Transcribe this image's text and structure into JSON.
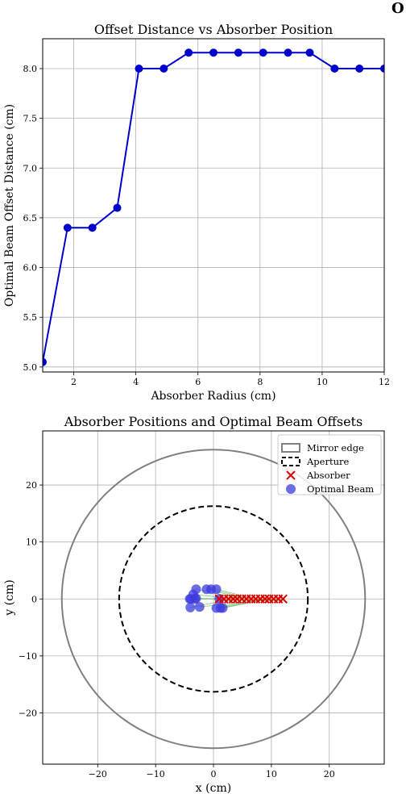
{
  "corner_glyph": "O",
  "chart_data": [
    {
      "type": "line",
      "title": "Offset Distance vs Absorber Position",
      "xlabel": "Absorber Radius (cm)",
      "ylabel": "Optimal Beam Offset Distance (cm)",
      "xlim": [
        1.0,
        12.0
      ],
      "ylim": [
        4.95,
        8.3
      ],
      "xticks": [
        2,
        4,
        6,
        8,
        10,
        12
      ],
      "yticks": [
        5.0,
        5.5,
        6.0,
        6.5,
        7.0,
        7.5,
        8.0
      ],
      "xtick_labels": [
        "2",
        "4",
        "6",
        "8",
        "10",
        "12"
      ],
      "ytick_labels": [
        "5.0",
        "5.5",
        "6.0",
        "6.5",
        "7.0",
        "7.5",
        "8.0"
      ],
      "grid": true,
      "color": "#0000cc",
      "series": [
        {
          "x": [
            1.0,
            1.8,
            2.6,
            3.4,
            4.1,
            4.9,
            5.7,
            6.5,
            7.3,
            8.1,
            8.9,
            9.6,
            10.4,
            11.2,
            12.0
          ],
          "y": [
            5.05,
            6.4,
            6.4,
            6.6,
            8.0,
            8.0,
            8.16,
            8.16,
            8.16,
            8.16,
            8.16,
            8.16,
            8.0,
            8.0,
            8.0
          ]
        }
      ]
    },
    {
      "type": "scatter",
      "title": "Absorber Positions and Optimal Beam Offsets",
      "xlabel": "x (cm)",
      "ylabel": "y (cm)",
      "xlim": [
        -29.5,
        29.5
      ],
      "ylim": [
        -29,
        29.5
      ],
      "xticks": [
        -20,
        -10,
        0,
        10,
        20
      ],
      "yticks": [
        -20,
        -10,
        0,
        10,
        20
      ],
      "xtick_labels": [
        "−20",
        "−10",
        "0",
        "10",
        "20"
      ],
      "ytick_labels": [
        "−20",
        "−10",
        "0",
        "10",
        "20"
      ],
      "grid": true,
      "legend_position": "top-right",
      "legend": [
        "Mirror edge",
        "Aperture",
        "Absorber",
        "Optimal Beam"
      ],
      "mirror_edge_radius": 26.2,
      "aperture_radius": 16.3,
      "colors": {
        "mirror": "#808080",
        "aperture": "#000000",
        "absorber": "#dd0000",
        "beam": "#3b3bdd",
        "link": "#66bb66"
      },
      "absorbers": {
        "x": [
          1.0,
          1.8,
          2.6,
          3.4,
          4.1,
          4.9,
          5.7,
          6.5,
          7.3,
          8.1,
          8.9,
          9.6,
          10.4,
          11.2,
          12.0
        ],
        "y": [
          0,
          0,
          0,
          0,
          0,
          0,
          0,
          0,
          0,
          0,
          0,
          0,
          0,
          0,
          0
        ]
      },
      "beams": {
        "x": [
          -4.1,
          -3.2,
          -3.0,
          -4.0,
          -3.5,
          -3.0,
          -1.2,
          -0.4,
          0.5,
          0.5,
          1.2,
          1.6,
          -3.9,
          -2.4,
          1.0
        ],
        "y": [
          0.0,
          0.0,
          0.1,
          -1.5,
          0.8,
          1.7,
          1.7,
          1.7,
          1.7,
          -1.6,
          -1.6,
          -1.6,
          0.0,
          -1.4,
          0.0
        ]
      }
    }
  ]
}
